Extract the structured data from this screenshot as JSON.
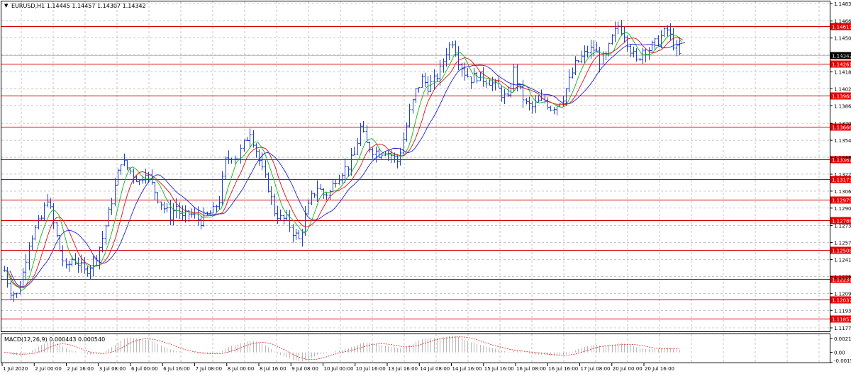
{
  "window": {
    "header_text": "EURUSD,H1  1.14445 1.14457 1.14307 1.14342"
  },
  "colors": {
    "background": "#ffffff",
    "grid": "#a0a0a0",
    "candles": "#1f3fcf",
    "level_lines": "#d40000",
    "level_label_bg": "#e80000",
    "current_price_bg": "#000000",
    "ma_fast": "#12b512",
    "ma_mid": "#d81010",
    "ma_slow": "#2020d0",
    "macd_hist": "#b8b8b8",
    "macd_signal": "#e02020"
  },
  "chart_data": [
    {
      "type": "candlestick",
      "symbol": "EURUSD",
      "timeframe": "H1",
      "ohlc_header": {
        "open": 1.14445,
        "high": 1.14457,
        "low": 1.14307,
        "close": 1.14342
      },
      "ylim": [
        1.1177,
        1.1483
      ],
      "y_ticks": [
        "1.14830",
        "1.14665",
        "1.14505",
        "1.14345",
        "1.14185",
        "1.14025",
        "1.13865",
        "1.13700",
        "1.13540",
        "1.13380",
        "1.13220",
        "1.13060",
        "1.12900",
        "1.12735",
        "1.12575",
        "1.12415",
        "1.12255",
        "1.12095",
        "1.11935",
        "1.11770"
      ],
      "x_ticks": [
        "1 Jul 2020",
        "2 Jul 00:00",
        "2 Jul 16:00",
        "3 Jul 08:00",
        "6 Jul 00:00",
        "6 Jul 16:00",
        "7 Jul 08:00",
        "8 Jul 00:00",
        "8 Jul 16:00",
        "9 Jul 08:00",
        "10 Jul 00:00",
        "10 Jul 16:00",
        "13 Jul 16:00",
        "14 Jul 08:00",
        "14 Jul 16:00",
        "15 Jul 16:00",
        "16 Jul 08:00",
        "16 Jul 16:00",
        "17 Jul 08:00",
        "20 Jul 00:00",
        "20 Jul 16:00"
      ],
      "levels": [
        "1.14617",
        "1.14261",
        "1.13960",
        "1.13666",
        "1.13361",
        "1.13173",
        "1.12979",
        "1.12788",
        "1.12508",
        "1.12231",
        "1.12037",
        "1.11857"
      ],
      "current_price": "1.14342",
      "price_path": [
        [
          0,
          1.1231
        ],
        [
          2,
          1.1212
        ],
        [
          4,
          1.1208
        ],
        [
          6,
          1.1229
        ],
        [
          8,
          1.1258
        ],
        [
          10,
          1.127
        ],
        [
          12,
          1.128
        ],
        [
          14,
          1.13
        ],
        [
          16,
          1.1275
        ],
        [
          18,
          1.125
        ],
        [
          20,
          1.1232
        ],
        [
          22,
          1.1242
        ],
        [
          24,
          1.1238
        ],
        [
          26,
          1.123
        ],
        [
          28,
          1.1236
        ],
        [
          30,
          1.1245
        ],
        [
          32,
          1.1262
        ],
        [
          34,
          1.1285
        ],
        [
          36,
          1.131
        ],
        [
          38,
          1.1335
        ],
        [
          40,
          1.1328
        ],
        [
          42,
          1.1322
        ],
        [
          44,
          1.1315
        ],
        [
          46,
          1.1326
        ],
        [
          48,
          1.1312
        ],
        [
          50,
          1.13
        ],
        [
          52,
          1.129
        ],
        [
          54,
          1.1283
        ],
        [
          56,
          1.1292
        ],
        [
          58,
          1.128
        ],
        [
          60,
          1.1285
        ],
        [
          62,
          1.1282
        ],
        [
          64,
          1.1278
        ],
        [
          66,
          1.1283
        ],
        [
          68,
          1.1287
        ],
        [
          70,
          1.1298
        ],
        [
          72,
          1.1334
        ],
        [
          74,
          1.134
        ],
        [
          76,
          1.1338
        ],
        [
          78,
          1.135
        ],
        [
          80,
          1.1363
        ],
        [
          82,
          1.1345
        ],
        [
          84,
          1.1325
        ],
        [
          86,
          1.131
        ],
        [
          88,
          1.1287
        ],
        [
          90,
          1.128
        ],
        [
          92,
          1.1279
        ],
        [
          94,
          1.1268
        ],
        [
          96,
          1.126
        ],
        [
          98,
          1.1282
        ],
        [
          100,
          1.13
        ],
        [
          102,
          1.131
        ],
        [
          104,
          1.1303
        ],
        [
          106,
          1.1305
        ],
        [
          108,
          1.1318
        ],
        [
          110,
          1.1325
        ],
        [
          112,
          1.133
        ],
        [
          114,
          1.134
        ],
        [
          116,
          1.1366
        ],
        [
          118,
          1.135
        ],
        [
          120,
          1.1345
        ],
        [
          122,
          1.1342
        ],
        [
          124,
          1.1345
        ],
        [
          126,
          1.134
        ],
        [
          128,
          1.1334
        ],
        [
          130,
          1.1355
        ],
        [
          132,
          1.138
        ],
        [
          134,
          1.14
        ],
        [
          136,
          1.1412
        ],
        [
          138,
          1.1405
        ],
        [
          140,
          1.141
        ],
        [
          142,
          1.142
        ],
        [
          144,
          1.1438
        ],
        [
          146,
          1.1448
        ],
        [
          148,
          1.143
        ],
        [
          150,
          1.1418
        ],
        [
          152,
          1.1412
        ],
        [
          154,
          1.1415
        ],
        [
          156,
          1.1412
        ],
        [
          158,
          1.141
        ],
        [
          160,
          1.1405
        ],
        [
          162,
          1.1398
        ],
        [
          164,
          1.1392
        ],
        [
          166,
          1.142
        ],
        [
          168,
          1.14
        ],
        [
          170,
          1.1388
        ],
        [
          172,
          1.1385
        ],
        [
          174,
          1.139
        ],
        [
          176,
          1.1392
        ],
        [
          178,
          1.1385
        ],
        [
          180,
          1.1388
        ],
        [
          182,
          1.1395
        ],
        [
          184,
          1.141
        ],
        [
          186,
          1.1425
        ],
        [
          188,
          1.1432
        ],
        [
          190,
          1.1438
        ],
        [
          192,
          1.144
        ],
        [
          194,
          1.143
        ],
        [
          196,
          1.1432
        ],
        [
          198,
          1.145
        ],
        [
          200,
          1.1462
        ],
        [
          202,
          1.1455
        ],
        [
          204,
          1.144
        ],
        [
          206,
          1.1428
        ],
        [
          208,
          1.144
        ],
        [
          210,
          1.144
        ],
        [
          212,
          1.1445
        ],
        [
          214,
          1.1452
        ],
        [
          216,
          1.1458
        ],
        [
          218,
          1.1445
        ],
        [
          220,
          1.1434
        ]
      ]
    },
    {
      "type": "line",
      "title": "MACD(12,26,9) 0.000443 0.000540",
      "y_ticks": [
        "0.002103",
        "0.00",
        "-0.00155"
      ],
      "ylim": [
        -0.00155,
        0.002103
      ]
    }
  ]
}
